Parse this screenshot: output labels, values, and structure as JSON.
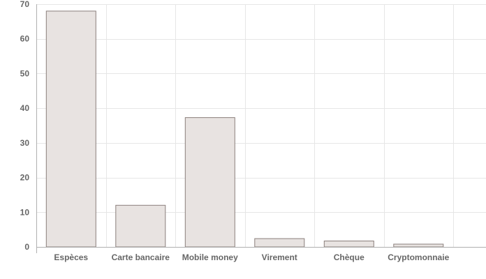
{
  "chart_data": {
    "type": "bar",
    "title": "",
    "xlabel": "",
    "ylabel": "",
    "categories": [
      "Espèces",
      "Carte bancaire",
      "Mobile money",
      "Virement",
      "Chèque",
      "Cryptomonnaie"
    ],
    "values": [
      68,
      12,
      37.3,
      2.4,
      1.7,
      0.8
    ],
    "ylim": [
      0,
      70
    ],
    "yticks": [
      0,
      10,
      20,
      30,
      40,
      50,
      60,
      70
    ],
    "grid": true,
    "legend": "none",
    "colors": {
      "bar_fill": "#e8e3e1",
      "bar_stroke": "#8a7f7c",
      "grid": "#e6e6e6",
      "axis": "#b0b0b0",
      "tick_text": "#666666"
    }
  }
}
